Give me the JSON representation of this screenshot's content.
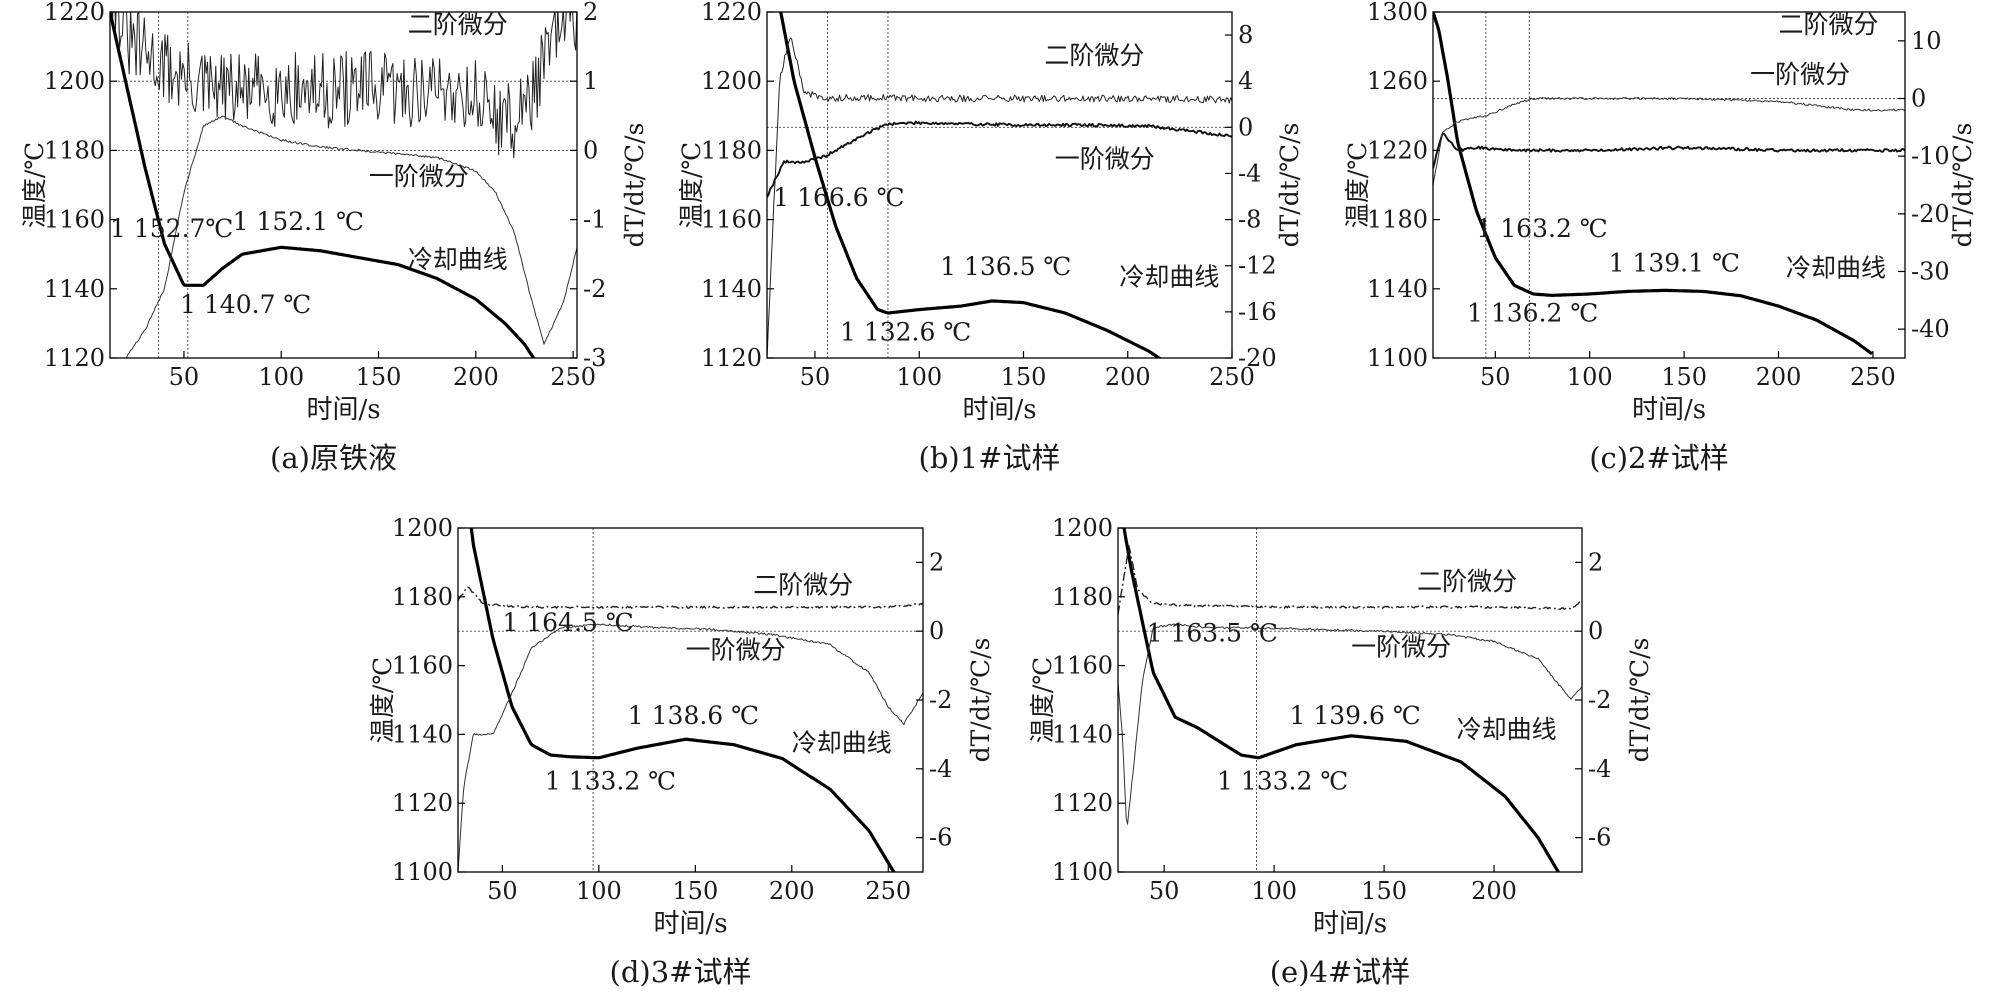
{
  "figure": {
    "panels": [
      "(a)原铁液",
      "(b)1#试样",
      "(c)2#试样",
      "(d)3#试样",
      "(e)4#试样"
    ]
  },
  "chart_data": [
    {
      "type": "line",
      "caption": "(a)原铁液",
      "xlabel": "时间/s",
      "ylabel_left": "温度/℃",
      "ylabel_right": "dT/dt/℃/s",
      "xlim": [
        12,
        252
      ],
      "ylim_left": [
        1120,
        1220
      ],
      "ylim_right": [
        -3,
        2
      ],
      "xticks": [
        50,
        100,
        150,
        200,
        250
      ],
      "yticks_left": [
        1120,
        1140,
        1160,
        1180,
        1200,
        1220
      ],
      "yticks_right": [
        -3,
        -2,
        -1,
        0,
        1,
        2
      ],
      "series": [
        {
          "name": "冷却曲线",
          "axis": "left",
          "style": "thick",
          "x": [
            12,
            20,
            30,
            40,
            50,
            60,
            70,
            80,
            100,
            120,
            140,
            160,
            180,
            200,
            215,
            225,
            232
          ],
          "y": [
            1220,
            1200,
            1175,
            1153,
            1141,
            1141,
            1146,
            1150,
            1152,
            1151,
            1149,
            1147,
            1143,
            1137,
            1130,
            1124,
            1118
          ]
        },
        {
          "name": "一阶微分",
          "axis": "right",
          "style": "thin",
          "x": [
            12,
            20,
            30,
            40,
            50,
            60,
            70,
            80,
            100,
            120,
            140,
            160,
            180,
            200,
            210,
            220,
            228,
            235,
            245,
            252
          ],
          "y": [
            -3.3,
            -3.0,
            -2.6,
            -2.0,
            -0.6,
            0.35,
            0.5,
            0.35,
            0.15,
            0.05,
            0.0,
            -0.05,
            -0.1,
            -0.3,
            -0.6,
            -1.2,
            -2.1,
            -2.8,
            -2.2,
            -1.4
          ]
        },
        {
          "name": "二阶微分",
          "axis": "right",
          "style": "noisy",
          "x": [
            12,
            20,
            40,
            60,
            80,
            100,
            120,
            140,
            160,
            180,
            200,
            210,
            220,
            230,
            240,
            252
          ],
          "y": [
            2.6,
            1.6,
            1.2,
            0.9,
            0.85,
            0.9,
            0.85,
            0.9,
            0.85,
            0.9,
            0.8,
            0.5,
            0.4,
            0.9,
            1.6,
            2.0
          ]
        }
      ],
      "annotations": [
        {
          "text": "二阶微分",
          "x": 165,
          "y_left": 1214
        },
        {
          "text": "一阶微分",
          "x": 145,
          "y_left": 1170
        },
        {
          "text": "冷却曲线",
          "x": 165,
          "y_left": 1146
        },
        {
          "text": "1 152.7℃",
          "x": 12,
          "y_left": 1155
        },
        {
          "text": "1 152.1 ℃",
          "x": 75,
          "y_left": 1157
        },
        {
          "text": "1 140.7 ℃",
          "x": 48,
          "y_left": 1133
        }
      ],
      "guides": {
        "v": [
          37,
          52
        ],
        "h_right": [
          1.0,
          0.0
        ]
      }
    },
    {
      "type": "line",
      "caption": "(b)1#试样",
      "xlabel": "时间/s",
      "ylabel_left": "温度/℃",
      "ylabel_right": "dT/dt/℃/s",
      "xlim": [
        27,
        250
      ],
      "ylim_left": [
        1120,
        1220
      ],
      "ylim_right": [
        -20,
        10
      ],
      "xticks": [
        50,
        100,
        150,
        200,
        250
      ],
      "yticks_left": [
        1120,
        1140,
        1160,
        1180,
        1200,
        1220
      ],
      "yticks_right": [
        -20,
        -16,
        -12,
        -8,
        -4,
        0,
        4,
        8
      ],
      "series": [
        {
          "name": "冷却曲线",
          "axis": "left",
          "style": "thick",
          "x": [
            27,
            32,
            40,
            50,
            60,
            70,
            80,
            85,
            100,
            120,
            135,
            150,
            170,
            190,
            210,
            225,
            230
          ],
          "y": [
            1240,
            1225,
            1200,
            1178,
            1158,
            1143,
            1134,
            1133,
            1134,
            1135,
            1136.5,
            1136,
            1133,
            1128,
            1122,
            1116,
            1113
          ]
        },
        {
          "name": "一阶微分",
          "axis": "right",
          "style": "medium",
          "x": [
            27,
            35,
            45,
            55,
            65,
            75,
            85,
            100,
            120,
            150,
            180,
            210,
            230,
            250
          ],
          "y": [
            -6,
            -3,
            -3,
            -2.5,
            -1.5,
            -0.5,
            0.3,
            0.4,
            0.3,
            0.2,
            0.2,
            0.1,
            -0.3,
            -0.8
          ]
        },
        {
          "name": "二阶微分",
          "axis": "right",
          "style": "noisy",
          "x": [
            27,
            33,
            38,
            45,
            55,
            70,
            100,
            150,
            200,
            250
          ],
          "y": [
            -20,
            4,
            8,
            3,
            2.5,
            2.6,
            2.5,
            2.5,
            2.5,
            2.4
          ]
        }
      ],
      "annotations": [
        {
          "text": "二阶微分",
          "x": 160,
          "y_left": 1205
        },
        {
          "text": "一阶微分",
          "x": 165,
          "y_left": 1175
        },
        {
          "text": "冷却曲线",
          "x": 196,
          "y_left": 1141
        },
        {
          "text": "1 166.6 ℃",
          "x": 30,
          "y_left": 1164
        },
        {
          "text": "1 136.5 ℃",
          "x": 110,
          "y_left": 1144
        },
        {
          "text": "1 132.6 ℃",
          "x": 62,
          "y_left": 1125
        }
      ],
      "guides": {
        "v": [
          56,
          85
        ],
        "h_right": [
          0.0
        ]
      }
    },
    {
      "type": "line",
      "caption": "(c)2#试样",
      "xlabel": "时间/s",
      "ylabel_left": "温度/℃",
      "ylabel_right": "dT/dt/℃/s",
      "xlim": [
        17,
        267
      ],
      "ylim_left": [
        1100,
        1300
      ],
      "ylim_right": [
        -45,
        15
      ],
      "xticks": [
        50,
        100,
        150,
        200,
        250
      ],
      "yticks_left": [
        1100,
        1140,
        1180,
        1220,
        1260,
        1300
      ],
      "yticks_right": [
        -40,
        -30,
        -20,
        -10,
        0,
        10
      ],
      "series": [
        {
          "name": "冷却曲线",
          "axis": "left",
          "style": "thick",
          "x": [
            17,
            20,
            25,
            30,
            40,
            50,
            60,
            70,
            80,
            100,
            120,
            140,
            160,
            180,
            200,
            220,
            240,
            250
          ],
          "y": [
            1300,
            1290,
            1260,
            1225,
            1185,
            1158,
            1142,
            1137,
            1136.2,
            1137,
            1138.5,
            1139.1,
            1138.5,
            1136,
            1130,
            1122,
            1110,
            1102
          ]
        },
        {
          "name": "一阶微分",
          "axis": "right",
          "style": "medium",
          "x": [
            17,
            22,
            30,
            40,
            60,
            80,
            100,
            150,
            200,
            250,
            267
          ],
          "y": [
            -12,
            -6,
            -9,
            -8.5,
            -9,
            -9,
            -9,
            -8.5,
            -9,
            -9,
            -9
          ]
        },
        {
          "name": "二阶微分",
          "axis": "right",
          "style": "thin",
          "x": [
            17,
            22,
            30,
            45,
            60,
            70,
            100,
            150,
            200,
            240,
            267
          ],
          "y": [
            -15,
            -6,
            -4,
            -3,
            -1,
            0,
            0,
            0,
            -0.5,
            -2,
            -2
          ]
        }
      ],
      "annotations": [
        {
          "text": "二阶微分",
          "x": 200,
          "y_left": 1288
        },
        {
          "text": "一阶微分",
          "x": 185,
          "y_left": 1259
        },
        {
          "text": "冷却曲线",
          "x": 204,
          "y_left": 1147
        },
        {
          "text": "1 163.2 ℃",
          "x": 40,
          "y_left": 1170
        },
        {
          "text": "1 139.1 ℃",
          "x": 110,
          "y_left": 1150
        },
        {
          "text": "1 136.2 ℃",
          "x": 35,
          "y_left": 1121
        }
      ],
      "guides": {
        "v": [
          45,
          68
        ],
        "h_right": [
          0.0
        ]
      }
    },
    {
      "type": "line",
      "caption": "(d)3#试样",
      "xlabel": "时间/s",
      "ylabel_left": "温度/℃",
      "ylabel_right": "dT/dt/℃/s",
      "xlim": [
        27,
        268
      ],
      "ylim_left": [
        1100,
        1200
      ],
      "ylim_right": [
        -7,
        3
      ],
      "xticks": [
        50,
        100,
        150,
        200,
        250
      ],
      "yticks_left": [
        1100,
        1120,
        1140,
        1160,
        1180,
        1200
      ],
      "yticks_right": [
        -6,
        -4,
        -2,
        0,
        2
      ],
      "series": [
        {
          "name": "冷却曲线",
          "axis": "left",
          "style": "thick",
          "x": [
            27,
            35,
            45,
            55,
            65,
            75,
            85,
            100,
            120,
            145,
            170,
            195,
            220,
            240,
            255
          ],
          "y": [
            1230,
            1195,
            1168,
            1148,
            1137,
            1134,
            1133.5,
            1133.2,
            1136,
            1138.6,
            1137,
            1133,
            1124,
            1112,
            1098
          ]
        },
        {
          "name": "一阶微分",
          "axis": "right",
          "style": "thin",
          "x": [
            27,
            30,
            35,
            45,
            55,
            65,
            80,
            100,
            130,
            160,
            190,
            220,
            240,
            250,
            258,
            268
          ],
          "y": [
            -7,
            -4.5,
            -3,
            -3,
            -1.8,
            -0.5,
            0.1,
            0.2,
            0.1,
            0.05,
            -0.1,
            -0.4,
            -1.2,
            -2.2,
            -2.7,
            -1.8
          ]
        },
        {
          "name": "二阶微分",
          "axis": "right",
          "style": "dashdot",
          "x": [
            27,
            32,
            40,
            60,
            100,
            150,
            200,
            250,
            268
          ],
          "y": [
            0.9,
            1.3,
            0.8,
            0.7,
            0.7,
            0.7,
            0.7,
            0.7,
            0.8
          ]
        }
      ],
      "annotations": [
        {
          "text": "二阶微分",
          "x": 180,
          "y_left": 1181
        },
        {
          "text": "一阶微分",
          "x": 145,
          "y_left": 1162
        },
        {
          "text": "冷却曲线",
          "x": 200,
          "y_left": 1135
        },
        {
          "text": "1 164.5 ℃",
          "x": 50,
          "y_left": 1170
        },
        {
          "text": "1 138.6 ℃",
          "x": 115,
          "y_left": 1143
        },
        {
          "text": "1 133.2 ℃",
          "x": 72,
          "y_left": 1124
        }
      ],
      "guides": {
        "v": [
          97
        ],
        "h_right": [
          0.0
        ]
      }
    },
    {
      "type": "line",
      "caption": "(e)4#试样",
      "xlabel": "时间/s",
      "ylabel_left": "温度/℃",
      "ylabel_right": "dT/dt/℃/s",
      "xlim": [
        29,
        240
      ],
      "ylim_left": [
        1100,
        1200
      ],
      "ylim_right": [
        -7,
        3
      ],
      "xticks": [
        50,
        100,
        150,
        200
      ],
      "yticks_left": [
        1100,
        1120,
        1140,
        1160,
        1180,
        1200
      ],
      "yticks_right": [
        -6,
        -4,
        -2,
        0,
        2
      ],
      "series": [
        {
          "name": "冷却曲线",
          "axis": "left",
          "style": "thick",
          "x": [
            29,
            35,
            45,
            55,
            65,
            75,
            85,
            93,
            110,
            135,
            160,
            185,
            205,
            220,
            232
          ],
          "y": [
            1210,
            1188,
            1158,
            1145,
            1142,
            1138,
            1134,
            1133.2,
            1137,
            1139.6,
            1138,
            1132,
            1122,
            1110,
            1097
          ]
        },
        {
          "name": "一阶微分",
          "axis": "right",
          "style": "thin",
          "x": [
            29,
            31,
            33,
            36,
            40,
            45,
            55,
            70,
            90,
            120,
            150,
            180,
            200,
            220,
            235,
            240
          ],
          "y": [
            -1.5,
            -3,
            -5.8,
            -4,
            -1.5,
            0.1,
            0.2,
            0.1,
            0.1,
            0.05,
            0.0,
            -0.1,
            -0.3,
            -0.8,
            -2.0,
            -1.6
          ]
        },
        {
          "name": "二阶微分",
          "axis": "right",
          "style": "dashdot",
          "x": [
            29,
            34,
            38,
            45,
            60,
            100,
            150,
            200,
            235,
            240
          ],
          "y": [
            0.5,
            2.5,
            1.2,
            0.8,
            0.75,
            0.7,
            0.7,
            0.7,
            0.65,
            0.9
          ]
        }
      ],
      "annotations": [
        {
          "text": "二阶微分",
          "x": 165,
          "y_left": 1182
        },
        {
          "text": "一阶微分",
          "x": 135,
          "y_left": 1163
        },
        {
          "text": "冷却曲线",
          "x": 183,
          "y_left": 1139
        },
        {
          "text": "1 163.5 ℃",
          "x": 42,
          "y_left": 1167
        },
        {
          "text": "1 139.6 ℃",
          "x": 107,
          "y_left": 1143
        },
        {
          "text": "1 133.2 ℃",
          "x": 74,
          "y_left": 1124
        }
      ],
      "guides": {
        "v": [
          92
        ],
        "h_right": [
          0.0
        ]
      }
    }
  ]
}
